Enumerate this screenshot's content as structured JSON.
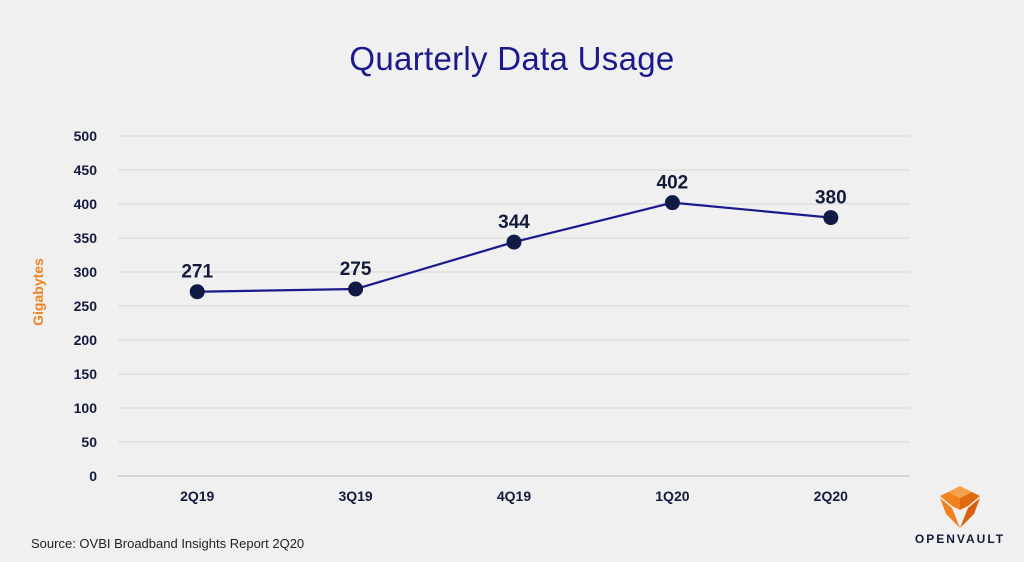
{
  "chart_data": {
    "type": "line",
    "title": "Quarterly Data Usage",
    "xlabel": "",
    "ylabel": "Gigabytes",
    "categories": [
      "2Q19",
      "3Q19",
      "4Q19",
      "1Q20",
      "2Q20"
    ],
    "values": [
      271,
      275,
      344,
      402,
      380
    ],
    "data_labels": [
      "271",
      "275",
      "344",
      "402",
      "380"
    ],
    "ylim": [
      0,
      500
    ],
    "yticks": [
      0,
      50,
      100,
      150,
      200,
      250,
      300,
      350,
      400,
      450,
      500
    ],
    "grid": true,
    "legend": "none",
    "colors": {
      "line": "#1a1a8c",
      "marker": "#0f1a45",
      "title": "#1a1a8c",
      "ylabel": "#f0821e"
    }
  },
  "source": "Source: OVBI Broadband Insights Report 2Q20",
  "logo": {
    "text": "OPENVAULT",
    "icon": "openvault-logo-icon",
    "color": "#f0821e"
  }
}
